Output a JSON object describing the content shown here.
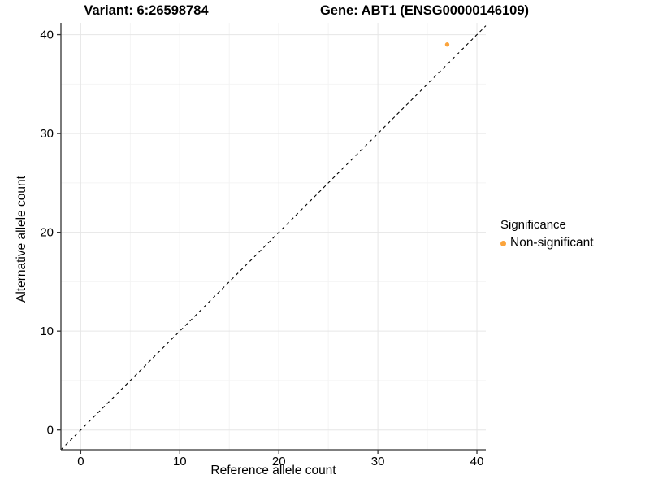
{
  "titles": {
    "variant": "Variant: 6:26598784",
    "gene": "Gene: ABT1 (ENSG00000146109)"
  },
  "legend": {
    "title": "Significance",
    "entries": [
      {
        "label": "Non-significant",
        "color": "#FBA43C"
      }
    ]
  },
  "chart_data": {
    "type": "scatter",
    "title": "Variant: 6:26598784 / Gene: ABT1 (ENSG00000146109)",
    "xlabel": "Reference allele count",
    "ylabel": "Alternative allele count",
    "x_ticks": [
      0,
      10,
      20,
      30,
      40
    ],
    "y_ticks": [
      0,
      10,
      20,
      30,
      40
    ],
    "x_minor_ticks": [
      5,
      15,
      25,
      35
    ],
    "y_minor_ticks": [
      5,
      15,
      25,
      35
    ],
    "xlim": [
      -2,
      40.9
    ],
    "ylim": [
      -2,
      41.2
    ],
    "grid": "on",
    "legend_position": "right",
    "series": [
      {
        "name": "Non-significant",
        "points": [
          {
            "x": 37,
            "y": 39
          }
        ],
        "color": "#FBA43C"
      }
    ],
    "identity_line": {
      "slope": 1,
      "intercept": 0,
      "style": "dashed",
      "color": "#000000"
    },
    "colors": {
      "point": "#FBA43C",
      "grid_major": "#e6e6e6",
      "grid_minor": "#f4f4f4",
      "axis": "#333333",
      "tick_label": "#000000"
    },
    "tick_font_size": 15
  }
}
